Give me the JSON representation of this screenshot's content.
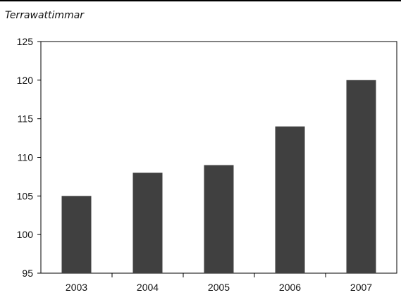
{
  "unit_label": "Terrawattimmar",
  "colors": {
    "bar": "#404040",
    "axis": "#000000",
    "text": "#111111"
  },
  "chart_data": {
    "type": "bar",
    "title": "",
    "xlabel": "",
    "ylabel": "Terrawattimmar",
    "categories": [
      "2003",
      "2004",
      "2005",
      "2006",
      "2007"
    ],
    "values": [
      105,
      108,
      109,
      114,
      120
    ],
    "ylim": [
      95,
      125
    ],
    "yticks": [
      95,
      100,
      105,
      110,
      115,
      120,
      125
    ],
    "grid": false,
    "legend": "none"
  }
}
